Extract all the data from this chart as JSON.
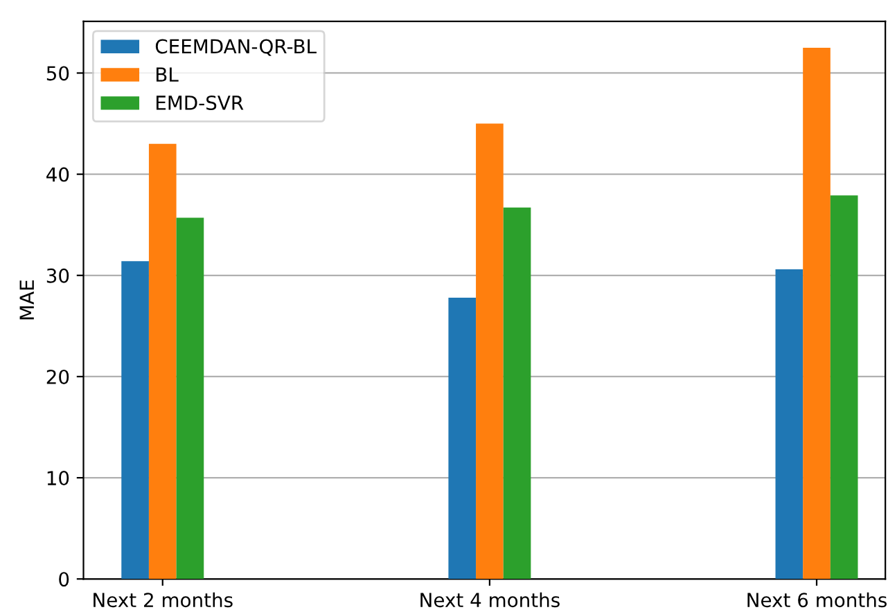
{
  "chart_data": {
    "type": "bar",
    "ylabel": "MAE",
    "categories": [
      "Next 2 months",
      "Next 4 months",
      "Next 6 months"
    ],
    "series": [
      {
        "name": "CEEMDAN-QR-BL",
        "color": "#1f77b4",
        "values": [
          31.4,
          27.8,
          30.6
        ]
      },
      {
        "name": "BL",
        "color": "#ff7f0e",
        "values": [
          43.0,
          45.0,
          52.5
        ]
      },
      {
        "name": "EMD-SVR",
        "color": "#2ca02c",
        "values": [
          35.7,
          36.7,
          37.9
        ]
      }
    ],
    "ylim": [
      0,
      55.1
    ],
    "yticks": [
      0,
      10,
      20,
      30,
      40,
      50
    ],
    "grid": "y",
    "legend": "top left"
  }
}
